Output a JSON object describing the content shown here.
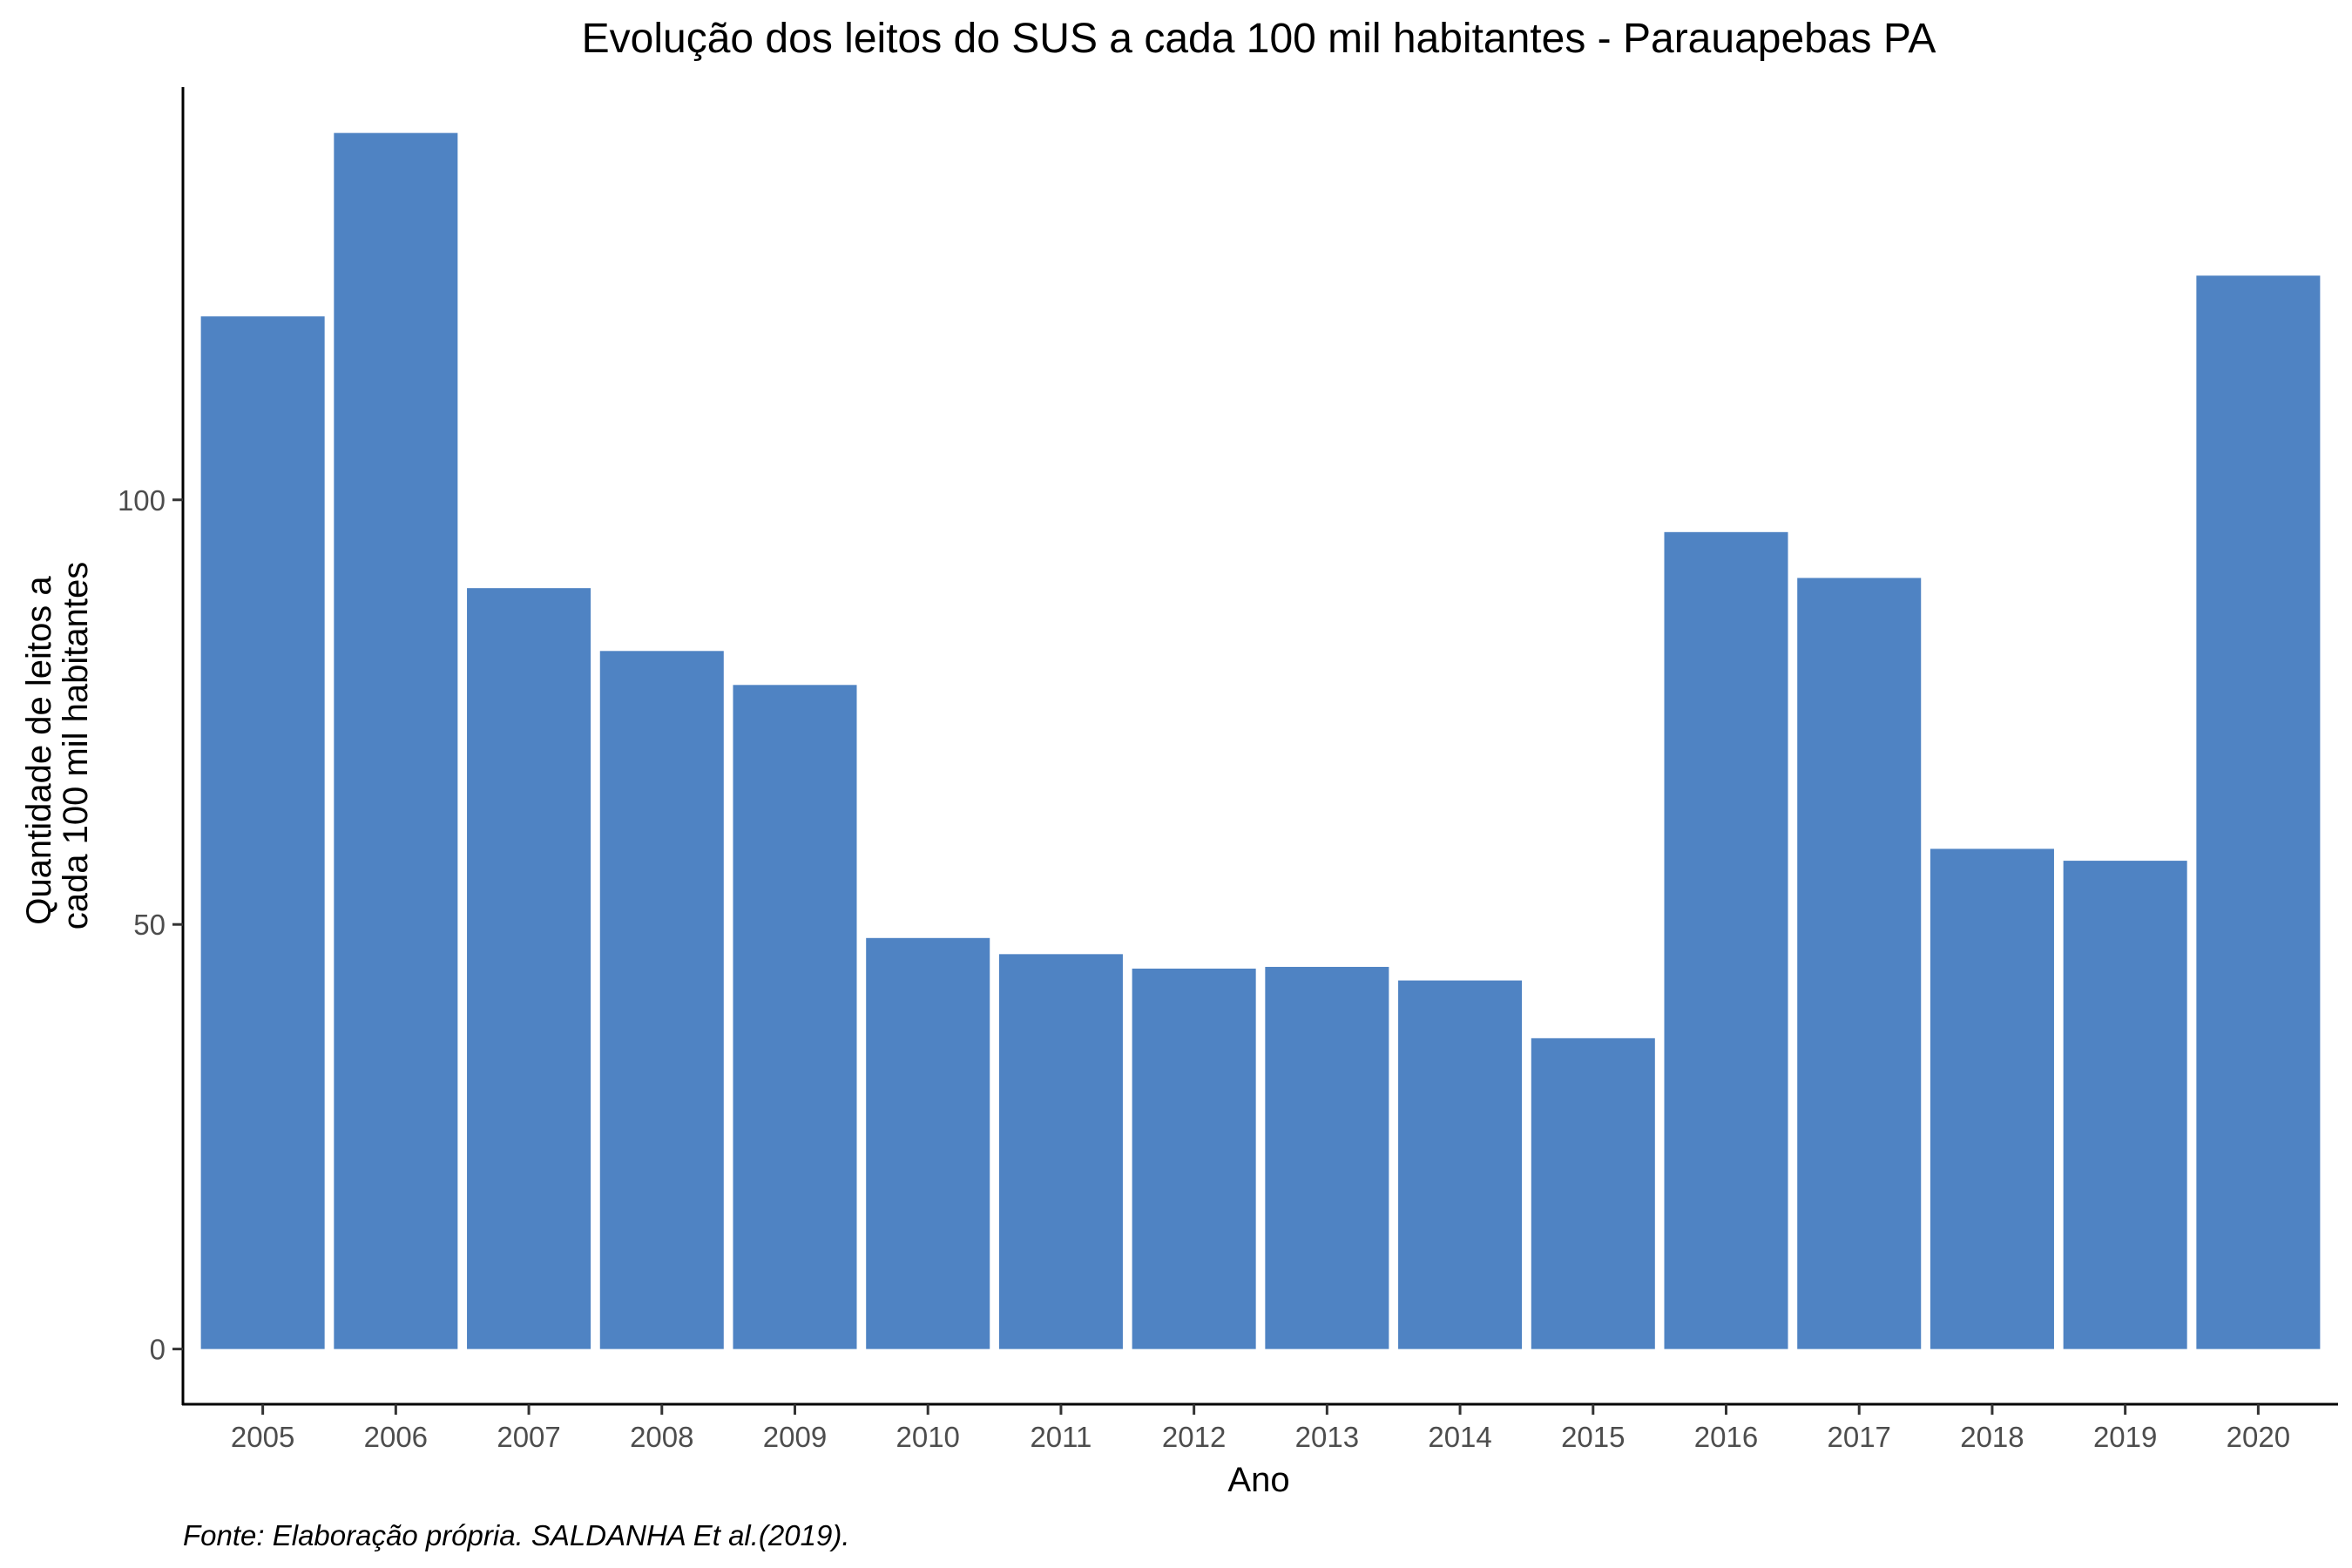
{
  "chart_data": {
    "type": "bar",
    "title": "Evolução dos leitos do SUS a cada 100 mil habitantes -  Parauapebas PA",
    "xlabel": "Ano",
    "ylabel_lines": [
      "Quantidade de leitos a",
      "cada 100 mil habitantes"
    ],
    "caption": "Fonte: Elaboração própria. SALDANHA Et al.(2019).",
    "categories": [
      "2005",
      "2006",
      "2007",
      "2008",
      "2009",
      "2010",
      "2011",
      "2012",
      "2013",
      "2014",
      "2015",
      "2016",
      "2017",
      "2018",
      "2019",
      "2020"
    ],
    "values": [
      121.6,
      143.2,
      89.6,
      82.2,
      78.2,
      48.4,
      46.5,
      44.8,
      45.0,
      43.4,
      36.6,
      96.2,
      90.8,
      58.9,
      57.5,
      126.4
    ],
    "yticks": [
      0,
      50,
      100
    ],
    "ylim": [
      -6.5,
      148.6
    ],
    "bar_color": "#4f83c3",
    "grid": false,
    "legend": "none"
  }
}
